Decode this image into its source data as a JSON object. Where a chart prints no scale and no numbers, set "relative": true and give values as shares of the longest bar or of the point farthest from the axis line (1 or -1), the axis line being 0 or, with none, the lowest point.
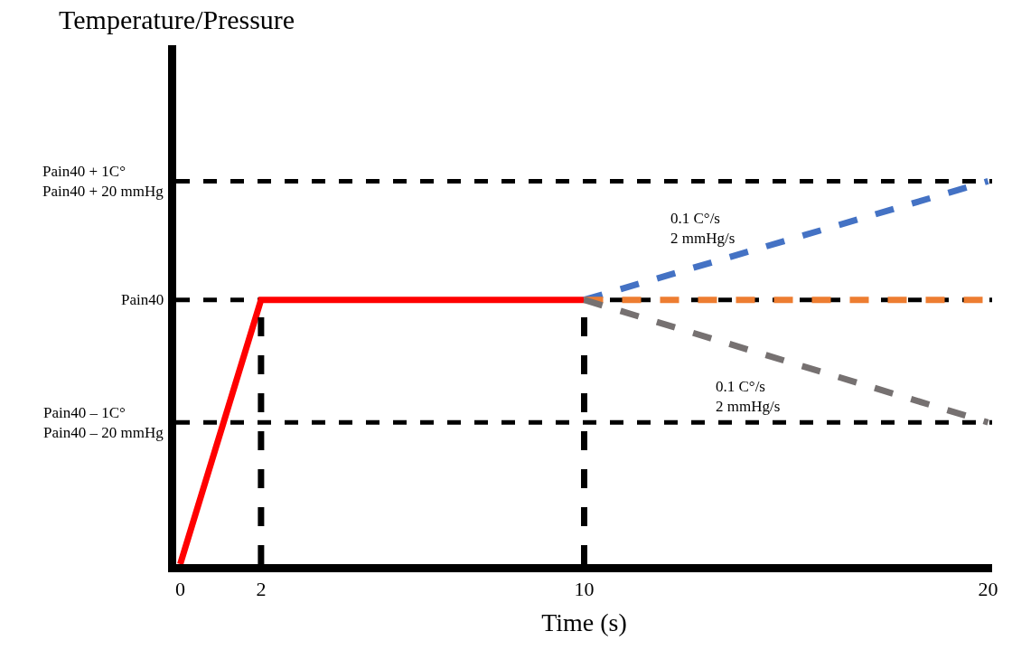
{
  "chart_data": {
    "type": "line",
    "xlabel": "Time (s)",
    "xlim": [
      -0.1,
      20.1
    ],
    "xticks": [
      0,
      2,
      10,
      20
    ],
    "relative": true,
    "marker": "none",
    "series": [
      {
        "x": [
          0,
          2,
          10
        ],
        "values": [
          0,
          0.69,
          0.69
        ],
        "color": "#ff0000",
        "line_style": "solid"
      },
      {
        "x": [
          10,
          20
        ],
        "values": [
          0.69,
          1
        ],
        "color": "#4472c4",
        "line_style": "dashed"
      },
      {
        "x": [
          10,
          20
        ],
        "values": [
          0.69,
          0.69
        ],
        "color": "#ed7d31",
        "line_style": "dashed"
      },
      {
        "x": [
          10,
          20
        ],
        "values": [
          0.69,
          0.37
        ],
        "color": "#767171",
        "line_style": "dashed"
      },
      {
        "x": [
          2,
          2
        ],
        "values": [
          0,
          0.69
        ],
        "color": "#000000",
        "line_style": "dashed"
      },
      {
        "x": [
          10,
          10
        ],
        "values": [
          0,
          0.69
        ],
        "color": "#000000",
        "line_style": "dashed"
      }
    ],
    "ref_lines": [
      {
        "axis": "y",
        "value": 1,
        "label": "Pain40 + 1C°\nPain40 + 20 mmHg",
        "color": "#000000",
        "line_style": "dashed"
      },
      {
        "axis": "y",
        "value": 0.69,
        "label": "Pain40",
        "color": "#000000",
        "line_style": "dashed"
      },
      {
        "axis": "y",
        "value": 0.37,
        "label": "Pain40 – 1C°\nPain40 – 20 mmHg",
        "color": "#000000",
        "line_style": "dashed"
      }
    ],
    "annotations": [
      "Temperature/Pressure",
      "0.1 C°/s\n2 mmHg/s",
      "0.1 C°/s\n2 mmHg/s"
    ]
  }
}
